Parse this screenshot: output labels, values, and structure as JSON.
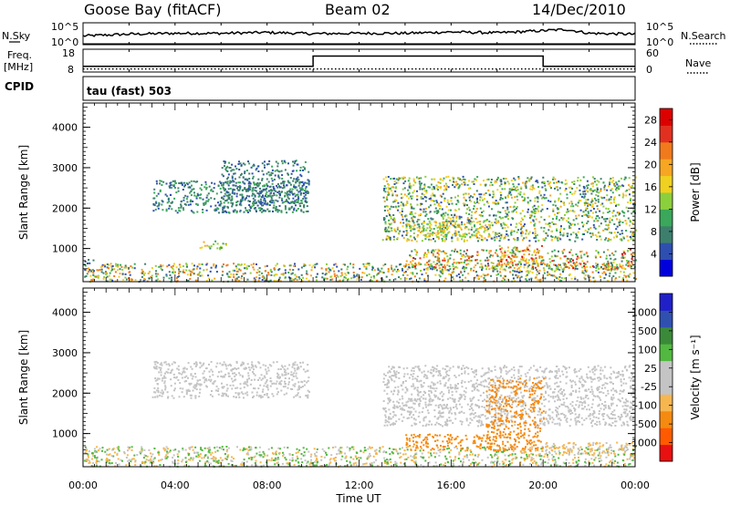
{
  "header": {
    "station": "Goose Bay (fitACF)",
    "beam": "Beam 02",
    "date": "14/Dec/2010"
  },
  "aux_panels": {
    "nsky_label": "N.Sky",
    "nsearch_label": "N.Search",
    "nsky_ticks": [
      "10^5",
      "10^0"
    ],
    "nsearch_ticks": [
      "10^5",
      "10^0"
    ],
    "freq_label_1": "Freq.",
    "freq_label_2": "[MHz]",
    "freq_ticks": [
      "18",
      "8"
    ],
    "nave_label": "Nave",
    "nave_ticks": [
      "60",
      "0"
    ],
    "cpid_label": "CPID",
    "cpid_value": "tau (fast) 503"
  },
  "colors": {
    "power_scale": [
      "#0000dd",
      "#2e4fb0",
      "#3d7f6c",
      "#3aa75a",
      "#8ccf3c",
      "#f0d020",
      "#f6a623",
      "#f07a1c",
      "#e23020",
      "#dd0000"
    ],
    "velocity_scale": [
      "#e81010",
      "#ff5a00",
      "#f58a10",
      "#f6b650",
      "#c4c4c4",
      "#c4c4c4",
      "#52b840",
      "#3a8a3a",
      "#3050b0",
      "#2020c8"
    ]
  },
  "chart_data": [
    {
      "type": "line",
      "title": "N.Sky / N.Search",
      "x_range": [
        0,
        24
      ],
      "ylim_log10": [
        0,
        5
      ],
      "series": [
        {
          "name": "N.Sky",
          "x": [
            0,
            2,
            4,
            6,
            8,
            10,
            12,
            14,
            16,
            18,
            20,
            21,
            22,
            24
          ],
          "y_log10": [
            2.0,
            2.4,
            2.6,
            2.6,
            2.8,
            2.5,
            2.6,
            2.6,
            2.9,
            2.7,
            3.2,
            3.5,
            2.6,
            2.4
          ]
        },
        {
          "name": "N.Search",
          "x": [
            0,
            24
          ],
          "y_log10": [
            0.2,
            0.2
          ]
        }
      ]
    },
    {
      "type": "line",
      "title": "Freq. / Nave",
      "x_range": [
        0,
        24
      ],
      "series": [
        {
          "name": "Freq. [MHz]",
          "x": [
            0,
            10,
            10,
            20,
            20,
            24
          ],
          "y": [
            10.5,
            10.5,
            15.0,
            15.0,
            10.5,
            10.5
          ],
          "ylim": [
            8,
            18
          ]
        },
        {
          "name": "Nave",
          "x": [
            0,
            24
          ],
          "y": [
            8,
            8
          ],
          "ylim": [
            0,
            60
          ]
        }
      ]
    },
    {
      "type": "heatmap",
      "xlabel": "Time UT",
      "ylabel": "Slant Range [km]",
      "x_ticks": [
        "00:00",
        "04:00",
        "08:00",
        "12:00",
        "16:00",
        "20:00",
        "00:00"
      ],
      "y_ticks": [
        1000,
        2000,
        3000,
        4000
      ],
      "x_range_hours": [
        0,
        24
      ],
      "ylim": [
        180,
        4600
      ],
      "colorbar": {
        "label": "Power [dB]",
        "ticks": [
          4,
          8,
          12,
          16,
          20,
          24,
          28
        ],
        "range": [
          0,
          30
        ]
      },
      "regions": [
        {
          "x": [
            0,
            24
          ],
          "y": [
            200,
            650
          ],
          "value": [
            4,
            24
          ]
        },
        {
          "x": [
            0,
            0.5
          ],
          "y": [
            650,
            750
          ],
          "value": [
            4,
            8
          ]
        },
        {
          "x": [
            3,
            9.8
          ],
          "y": [
            1900,
            2700
          ],
          "value": [
            4,
            12
          ]
        },
        {
          "x": [
            6,
            9.8
          ],
          "y": [
            1900,
            3200
          ],
          "value": [
            4,
            10
          ]
        },
        {
          "x": [
            5,
            6.2
          ],
          "y": [
            1000,
            1200
          ],
          "value": [
            8,
            20
          ]
        },
        {
          "x": [
            13,
            24
          ],
          "y": [
            1200,
            2800
          ],
          "value": [
            4,
            20
          ]
        },
        {
          "x": [
            14,
            18
          ],
          "y": [
            1300,
            1700
          ],
          "value": [
            10,
            20
          ]
        },
        {
          "x": [
            14,
            24
          ],
          "y": [
            500,
            1000
          ],
          "value": [
            6,
            28
          ]
        },
        {
          "x": [
            18,
            20
          ],
          "y": [
            600,
            1100
          ],
          "value": [
            12,
            28
          ]
        }
      ]
    },
    {
      "type": "heatmap",
      "xlabel": "Time UT",
      "ylabel": "Slant Range [km]",
      "x_ticks": [
        "00:00",
        "04:00",
        "08:00",
        "12:00",
        "16:00",
        "20:00",
        "00:00"
      ],
      "y_ticks": [
        1000,
        2000,
        3000,
        4000
      ],
      "x_range_hours": [
        0,
        24
      ],
      "ylim": [
        180,
        4600
      ],
      "colorbar": {
        "label": "Velocity [m s⁻¹]",
        "ticks": [
          1000,
          500,
          100,
          25,
          -25,
          -100,
          -500,
          -1000
        ],
        "range": [
          -1000,
          1000
        ]
      },
      "regions": [
        {
          "x": [
            0,
            24
          ],
          "y": [
            200,
            700
          ],
          "value": [
            -100,
            100
          ]
        },
        {
          "x": [
            3,
            9.8
          ],
          "y": [
            1900,
            2800
          ],
          "value": [
            -25,
            25
          ]
        },
        {
          "x": [
            13,
            24
          ],
          "y": [
            1200,
            2700
          ],
          "value": [
            -25,
            25
          ]
        },
        {
          "x": [
            14,
            18
          ],
          "y": [
            600,
            1000
          ],
          "value": [
            -500,
            -100
          ]
        },
        {
          "x": [
            17.5,
            20
          ],
          "y": [
            600,
            2400
          ],
          "value": [
            -500,
            -100
          ]
        },
        {
          "x": [
            20,
            24
          ],
          "y": [
            500,
            800
          ],
          "value": [
            -100,
            25
          ]
        }
      ]
    }
  ]
}
